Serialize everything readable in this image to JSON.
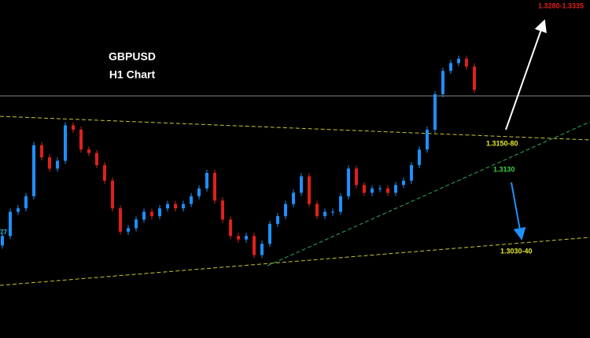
{
  "chart_data": {
    "type": "candlestick",
    "title": "GBPUSD",
    "subtitle": "H1 Chart",
    "ylim": [
      1.2933,
      1.3324
    ],
    "up_color": "#1e90ff",
    "down_color": "#e0201c",
    "open": [
      1.304,
      1.3051,
      1.3079,
      1.3083,
      1.3097,
      1.3156,
      1.3142,
      1.3129,
      1.3138,
      1.3179,
      1.3174,
      1.3151,
      1.3147,
      1.3133,
      1.3115,
      1.3083,
      1.3056,
      1.306,
      1.307,
      1.3079,
      1.3074,
      1.3083,
      1.3088,
      1.3083,
      1.3088,
      1.3097,
      1.3106,
      1.3124,
      1.3092,
      1.307,
      1.3051,
      1.3047,
      1.3051,
      1.3029,
      1.3042,
      1.3065,
      1.3074,
      1.3088,
      1.3101,
      1.312,
      1.3088,
      1.3074,
      1.3079,
      1.3079,
      1.3097,
      1.3129,
      1.311,
      1.3101,
      1.3106,
      1.3106,
      1.3101,
      1.311,
      1.3115,
      1.3133,
      1.3151,
      1.3174,
      1.3215,
      1.3242,
      1.3251,
      1.3256,
      1.3247
    ],
    "close": [
      1.3051,
      1.3079,
      1.3083,
      1.3097,
      1.3156,
      1.3142,
      1.3129,
      1.3138,
      1.3179,
      1.3174,
      1.3151,
      1.3147,
      1.3133,
      1.3115,
      1.3083,
      1.3056,
      1.306,
      1.307,
      1.3079,
      1.3074,
      1.3083,
      1.3088,
      1.3083,
      1.3088,
      1.3097,
      1.3106,
      1.3124,
      1.3092,
      1.307,
      1.3051,
      1.3047,
      1.3051,
      1.3029,
      1.3042,
      1.3065,
      1.3074,
      1.3088,
      1.3101,
      1.312,
      1.3088,
      1.3074,
      1.3079,
      1.3079,
      1.3097,
      1.3129,
      1.311,
      1.3101,
      1.3106,
      1.3106,
      1.3101,
      1.311,
      1.3115,
      1.3133,
      1.3151,
      1.3174,
      1.3215,
      1.3242,
      1.3251,
      1.3256,
      1.3247,
      1.322
    ],
    "annotations": [
      "1.3280-1.3335",
      "1.3150-80",
      "1.3130",
      "1.3030-40"
    ],
    "left_label": "77"
  }
}
